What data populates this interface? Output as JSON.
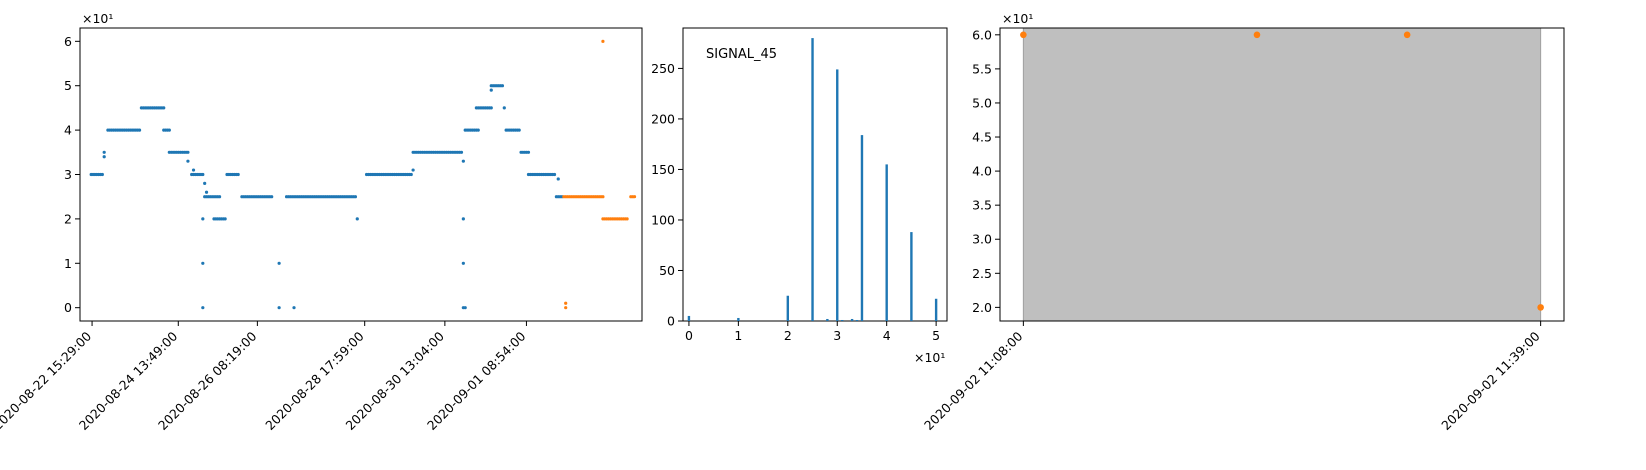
{
  "colors": {
    "series_blue": "#1f77b4",
    "series_orange": "#ff7f0e",
    "shade": "#bfbfbf",
    "axes": "#000000"
  },
  "chart_data": [
    {
      "type": "scatter",
      "scale_label": "×10¹",
      "x_ticks": [
        "2020-08-22 15:29:00",
        "2020-08-24 13:49:00",
        "2020-08-26 08:19:00",
        "2020-08-28 17:59:00",
        "2020-08-30 13:04:00",
        "2020-09-01 08:54:00"
      ],
      "x_tick_times": [
        "2020-08-22T15:29",
        "2020-08-24T13:49",
        "2020-08-26T08:19",
        "2020-08-28T17:59",
        "2020-08-30T13:04",
        "2020-09-01T08:54"
      ],
      "xlim": [
        "2020-08-22T09:00",
        "2020-09-03T23:00"
      ],
      "ylim": [
        -0.3,
        6.3
      ],
      "y_ticks": [
        "0",
        "1",
        "2",
        "3",
        "4",
        "5",
        "6"
      ],
      "y_tick_values": [
        0,
        1,
        2,
        3,
        4,
        5,
        6
      ],
      "series": [
        {
          "color": "#1f77b4",
          "segments": [
            {
              "from": "2020-08-22T15:00",
              "to": "2020-08-22T21:00",
              "y": 3.0
            },
            {
              "from": "2020-08-23T00:00",
              "to": "2020-08-23T17:00",
              "y": 4.0
            },
            {
              "from": "2020-08-23T18:00",
              "to": "2020-08-24T06:00",
              "y": 4.5
            },
            {
              "from": "2020-08-24T06:00",
              "to": "2020-08-24T09:00",
              "y": 4.0
            },
            {
              "from": "2020-08-24T09:00",
              "to": "2020-08-24T19:00",
              "y": 3.5
            },
            {
              "from": "2020-08-24T21:00",
              "to": "2020-08-25T03:00",
              "y": 3.0
            },
            {
              "from": "2020-08-25T04:00",
              "to": "2020-08-25T12:00",
              "y": 2.5
            },
            {
              "from": "2020-08-25T09:00",
              "to": "2020-08-25T15:00",
              "y": 2.0
            },
            {
              "from": "2020-08-25T16:00",
              "to": "2020-08-25T22:00",
              "y": 3.0
            },
            {
              "from": "2020-08-26T00:00",
              "to": "2020-08-26T16:00",
              "y": 2.5
            },
            {
              "from": "2020-08-27T00:00",
              "to": "2020-08-28T13:00",
              "y": 2.5
            },
            {
              "from": "2020-08-28T19:00",
              "to": "2020-08-29T19:00",
              "y": 3.0
            },
            {
              "from": "2020-08-29T20:00",
              "to": "2020-08-30T22:00",
              "y": 3.5
            },
            {
              "from": "2020-08-31T00:00",
              "to": "2020-08-31T07:00",
              "y": 4.0
            },
            {
              "from": "2020-08-31T06:00",
              "to": "2020-08-31T14:00",
              "y": 4.5
            },
            {
              "from": "2020-08-31T14:00",
              "to": "2020-08-31T20:00",
              "y": 5.0
            },
            {
              "from": "2020-08-31T22:00",
              "to": "2020-09-01T05:00",
              "y": 4.0
            },
            {
              "from": "2020-09-01T06:00",
              "to": "2020-09-01T10:00",
              "y": 3.5
            },
            {
              "from": "2020-09-01T10:00",
              "to": "2020-09-02T00:00",
              "y": 3.0
            },
            {
              "from": "2020-09-02T01:00",
              "to": "2020-09-02T04:00",
              "y": 2.5
            }
          ],
          "points": [
            {
              "x": "2020-08-22T22:00",
              "y": 3.4
            },
            {
              "x": "2020-08-22T22:00",
              "y": 3.5
            },
            {
              "x": "2020-08-24T19:00",
              "y": 3.3
            },
            {
              "x": "2020-08-24T22:00",
              "y": 3.1
            },
            {
              "x": "2020-08-25T04:00",
              "y": 2.8
            },
            {
              "x": "2020-08-25T05:00",
              "y": 2.6
            },
            {
              "x": "2020-08-25T03:00",
              "y": 2.0
            },
            {
              "x": "2020-08-25T03:00",
              "y": 1.0
            },
            {
              "x": "2020-08-25T03:00",
              "y": 0.0
            },
            {
              "x": "2020-08-26T20:00",
              "y": 1.0
            },
            {
              "x": "2020-08-26T20:00",
              "y": 0.0
            },
            {
              "x": "2020-08-27T04:00",
              "y": 0.0
            },
            {
              "x": "2020-08-28T14:00",
              "y": 2.0
            },
            {
              "x": "2020-08-29T20:00",
              "y": 3.1
            },
            {
              "x": "2020-08-30T23:00",
              "y": 3.3
            },
            {
              "x": "2020-08-30T23:00",
              "y": 2.0
            },
            {
              "x": "2020-08-30T23:00",
              "y": 1.0
            },
            {
              "x": "2020-08-30T23:00",
              "y": 0.0
            },
            {
              "x": "2020-08-31T00:00",
              "y": 0.0
            },
            {
              "x": "2020-08-31T14:00",
              "y": 4.9
            },
            {
              "x": "2020-08-31T21:00",
              "y": 4.5
            },
            {
              "x": "2020-09-02T02:00",
              "y": 2.9
            }
          ]
        },
        {
          "color": "#ff7f0e",
          "segments": [
            {
              "from": "2020-09-02T05:00",
              "to": "2020-09-03T02:00",
              "y": 2.5
            },
            {
              "from": "2020-09-03T02:00",
              "to": "2020-09-03T14:00",
              "y": 2.0
            },
            {
              "from": "2020-09-03T17:00",
              "to": "2020-09-03T19:00",
              "y": 2.5
            }
          ],
          "points": [
            {
              "x": "2020-09-02T06:00",
              "y": 0.1
            },
            {
              "x": "2020-09-02T06:00",
              "y": 0.0
            },
            {
              "x": "2020-09-03T02:00",
              "y": 6.0
            },
            {
              "x": "2020-09-03T15:00",
              "y": 2.0
            }
          ]
        }
      ]
    },
    {
      "type": "bar",
      "annotation": "SIGNAL_45",
      "scale_label": "×10¹",
      "xlim": [
        -0.12,
        5.22
      ],
      "ylim": [
        0,
        290
      ],
      "x_ticks": [
        "0",
        "1",
        "2",
        "3",
        "4",
        "5"
      ],
      "x_tick_values": [
        0,
        1,
        2,
        3,
        4,
        5
      ],
      "y_ticks": [
        "0",
        "50",
        "100",
        "150",
        "200",
        "250"
      ],
      "y_tick_values": [
        0,
        50,
        100,
        150,
        200,
        250
      ],
      "color": "#1f77b4",
      "bars": [
        {
          "x": 0.0,
          "value": 5
        },
        {
          "x": 1.0,
          "value": 3
        },
        {
          "x": 2.0,
          "value": 25
        },
        {
          "x": 2.5,
          "value": 280
        },
        {
          "x": 2.8,
          "value": 2
        },
        {
          "x": 3.0,
          "value": 249
        },
        {
          "x": 3.1,
          "value": 1
        },
        {
          "x": 3.3,
          "value": 2
        },
        {
          "x": 3.4,
          "value": 1
        },
        {
          "x": 3.5,
          "value": 184
        },
        {
          "x": 4.0,
          "value": 155
        },
        {
          "x": 4.5,
          "value": 88
        },
        {
          "x": 5.0,
          "value": 22
        }
      ]
    },
    {
      "type": "scatter",
      "scale_label": "×10¹",
      "x_ticks": [
        "2020-09-02 11:08:00",
        "2020-09-02 11:39:00"
      ],
      "x_tick_values": [
        0,
        31
      ],
      "xlim": [
        -1.4,
        32.4
      ],
      "ylim": [
        1.8,
        6.1
      ],
      "y_ticks": [
        "2.0",
        "2.5",
        "3.0",
        "3.5",
        "4.0",
        "4.5",
        "5.0",
        "5.5",
        "6.0"
      ],
      "y_tick_values": [
        2.0,
        2.5,
        3.0,
        3.5,
        4.0,
        4.5,
        5.0,
        5.5,
        6.0
      ],
      "shaded_range": [
        0,
        31
      ],
      "color": "#ff7f0e",
      "points": [
        {
          "x": 0,
          "y": 6.0
        },
        {
          "x": 14,
          "y": 6.0
        },
        {
          "x": 23,
          "y": 6.0
        },
        {
          "x": 31,
          "y": 2.0
        }
      ]
    }
  ]
}
